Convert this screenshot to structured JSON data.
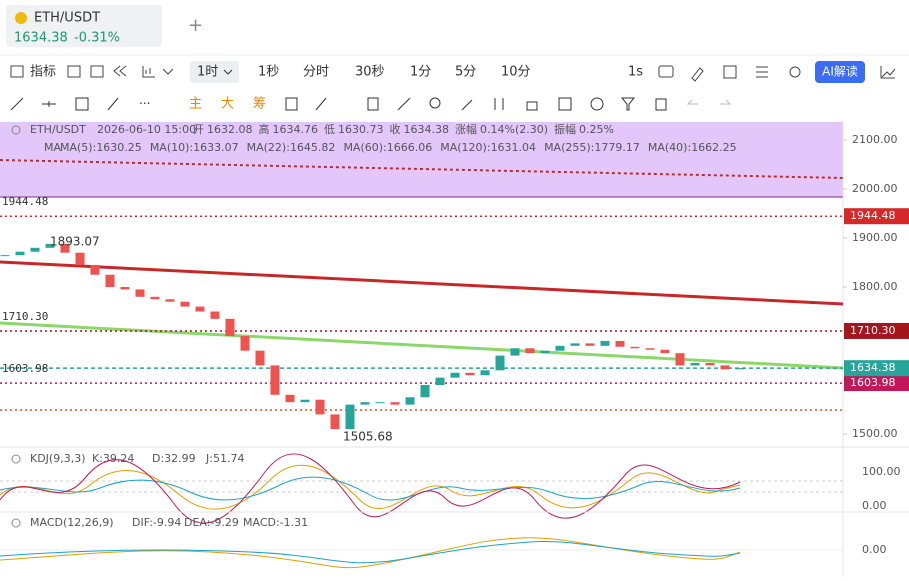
{
  "tab": {
    "symbol": "ETH/USDT",
    "price": "1634.38",
    "change": "-0.31%"
  },
  "toolbar": {
    "indicators": "指标",
    "intervals": [
      "1时",
      "1秒",
      "分时",
      "30秒",
      "1分",
      "5分",
      "10分"
    ],
    "speed": "1s",
    "ai": "AI解读"
  },
  "drawing_tools": [
    "主",
    "大",
    "筹"
  ],
  "chart_data": {
    "type": "candlestick",
    "info": {
      "symbol": "ETH/USDT",
      "time": "2026-06-10 15:00",
      "fields": [
        {
          "label": "开",
          "value": "1632.08"
        },
        {
          "label": "高",
          "value": "1634.76"
        },
        {
          "label": "低",
          "value": "1630.73"
        },
        {
          "label": "收",
          "value": "1634.38"
        },
        {
          "label": "涨幅",
          "value": "0.14%(2.30)"
        },
        {
          "label": "振幅",
          "value": "0.25%"
        }
      ]
    },
    "ma_label": "MA",
    "ma": [
      {
        "name": "MA(5):",
        "value": "1630.25",
        "color": "#e0a000"
      },
      {
        "name": "MA(10):",
        "value": "1633.07",
        "color": "#d4b000"
      },
      {
        "name": "MA(22):",
        "value": "1645.82",
        "color": "#8b1a5a"
      },
      {
        "name": "MA(60):",
        "value": "1666.06",
        "color": "#1ca3c8"
      },
      {
        "name": "MA(120):",
        "value": "1631.04",
        "color": "#9ccc65"
      },
      {
        "name": "MA(255):",
        "value": "1779.17",
        "color": "#f06292"
      },
      {
        "name": "MA(40):",
        "value": "1662.25",
        "color": "#2e7d32"
      }
    ],
    "ylim": [
      1477.6,
      2136.7
    ],
    "yticks": [
      {
        "value": 2100,
        "label": "2100.00"
      },
      {
        "value": 2000,
        "label": "2000.00"
      },
      {
        "value": 1900,
        "label": "1900.00"
      },
      {
        "value": 1800,
        "label": "1800.00"
      },
      {
        "value": 1500,
        "label": "1500.00"
      }
    ],
    "price_lines": [
      {
        "value": 1944.48,
        "label": "1944.48",
        "color": "#d62828"
      },
      {
        "value": 1710.3,
        "label": "1710.30",
        "color": "#a4161a"
      },
      {
        "value": 1603.98,
        "label": "1603.98",
        "color": "#c2185b"
      }
    ],
    "last_price": {
      "value": 1634.38,
      "label": "1634.38",
      "color": "#26a69a"
    },
    "up_color": "#26a69a",
    "down_color": "#ef5350",
    "closes": [
      1865,
      1872,
      1880,
      1888,
      1870,
      1845,
      1825,
      1800,
      1795,
      1780,
      1775,
      1770,
      1760,
      1750,
      1735,
      1700,
      1670,
      1640,
      1580,
      1565,
      1570,
      1540,
      1510,
      1560,
      1565,
      1565,
      1560,
      1575,
      1600,
      1615,
      1625,
      1620,
      1630,
      1660,
      1675,
      1665,
      1670,
      1680,
      1685,
      1680,
      1690,
      1678,
      1675,
      1672,
      1665,
      1640,
      1645,
      1640,
      1632,
      1634.38
    ],
    "high_label": "1893.07",
    "low_label": "1505.68",
    "kdj": {
      "name": "KDJ(9,3,3)",
      "k": "K:39.24",
      "d": "D:32.99",
      "j": "J:51.74",
      "ticks": [
        "100.00",
        "0.00"
      ]
    },
    "macd": {
      "name": "MACD(12,26,9)",
      "dif": "DIF:-9.94",
      "dea": "DEA:-9.29",
      "macd": "MACD:-1.31",
      "ticks": [
        "0.00"
      ]
    }
  }
}
